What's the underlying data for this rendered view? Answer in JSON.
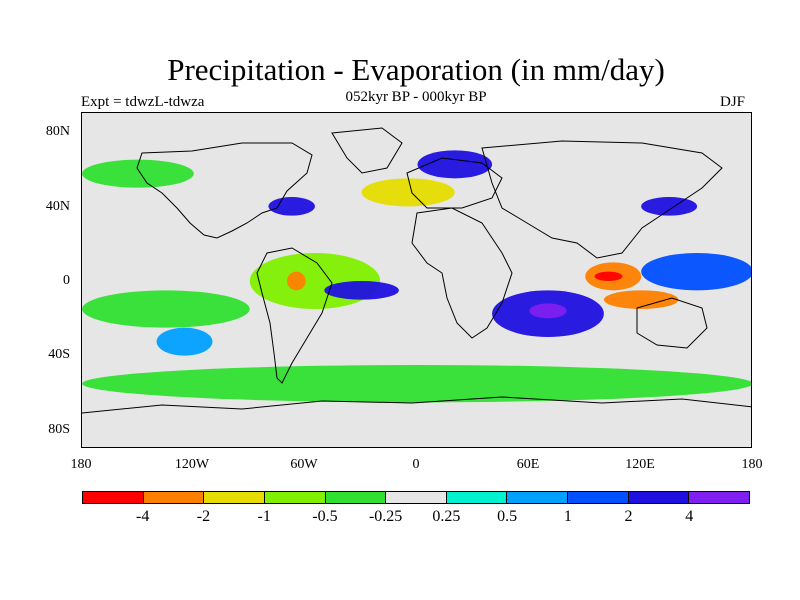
{
  "header": {
    "title": "Precipitation - Evaporation (in mm/day)",
    "subtitle": "052kyr BP - 000kyr BP",
    "experiment": "Expt = tdwzL-tdwza",
    "season": "DJF"
  },
  "map": {
    "lat_ticks": [
      "80N",
      "40N",
      "0",
      "40S",
      "80S"
    ],
    "lon_ticks": [
      "180",
      "120W",
      "60W",
      "0",
      "60E",
      "120E",
      "180"
    ],
    "lon_range": [
      -180,
      180
    ],
    "lat_range": [
      -90,
      90
    ],
    "background_color": "#e6e6e6"
  },
  "colorbar": {
    "colors": [
      "#ff0000",
      "#ff8000",
      "#e6dc00",
      "#80f000",
      "#30e030",
      "#e6e6e6",
      "#00f0d0",
      "#00a0ff",
      "#0050ff",
      "#2010e0",
      "#8020f0"
    ],
    "labels": [
      "-4",
      "-2",
      "-1",
      "-0.5",
      "-0.25",
      "0.25",
      "0.5",
      "1",
      "2",
      "4"
    ]
  },
  "chart_data": {
    "type": "heatmap",
    "title": "Precipitation - Evaporation (in mm/day)",
    "subtitle": "052kyr BP - 000kyr BP",
    "xlim": [
      -180,
      180
    ],
    "ylim": [
      -90,
      90
    ],
    "levels": [
      -4,
      -2,
      -1,
      -0.5,
      -0.25,
      0.25,
      0.5,
      1,
      2,
      4
    ],
    "regions": [
      {
        "lon": [
          -180,
          -90
        ],
        "lat": [
          -25,
          -5
        ],
        "level": "-0.25"
      },
      {
        "lon": [
          -140,
          -110
        ],
        "lat": [
          -40,
          -25
        ],
        "level": "0.5"
      },
      {
        "lon": [
          -90,
          -20
        ],
        "lat": [
          -15,
          15
        ],
        "level": "-0.5"
      },
      {
        "lon": [
          -70,
          -60
        ],
        "lat": [
          -5,
          5
        ],
        "level": "-2"
      },
      {
        "lon": [
          -50,
          -10
        ],
        "lat": [
          -10,
          0
        ],
        "level": "2"
      },
      {
        "lon": [
          -80,
          -55
        ],
        "lat": [
          35,
          45
        ],
        "level": "2"
      },
      {
        "lon": [
          -30,
          20
        ],
        "lat": [
          40,
          55
        ],
        "level": "-1"
      },
      {
        "lon": [
          0,
          40
        ],
        "lat": [
          55,
          70
        ],
        "level": "2"
      },
      {
        "lon": [
          40,
          100
        ],
        "lat": [
          -30,
          -5
        ],
        "level": "2"
      },
      {
        "lon": [
          60,
          80
        ],
        "lat": [
          -20,
          -12
        ],
        "level": "4"
      },
      {
        "lon": [
          90,
          120
        ],
        "lat": [
          -5,
          10
        ],
        "level": "-2"
      },
      {
        "lon": [
          95,
          110
        ],
        "lat": [
          0,
          5
        ],
        "level": "-4"
      },
      {
        "lon": [
          120,
          180
        ],
        "lat": [
          -5,
          15
        ],
        "level": "1"
      },
      {
        "lon": [
          100,
          140
        ],
        "lat": [
          -15,
          -5
        ],
        "level": "-2"
      },
      {
        "lon": [
          120,
          150
        ],
        "lat": [
          35,
          45
        ],
        "level": "2"
      },
      {
        "lon": [
          -180,
          180
        ],
        "lat": [
          -65,
          -45
        ],
        "level": "-0.25"
      },
      {
        "lon": [
          -180,
          -120
        ],
        "lat": [
          50,
          65
        ],
        "level": "-0.25"
      }
    ]
  }
}
